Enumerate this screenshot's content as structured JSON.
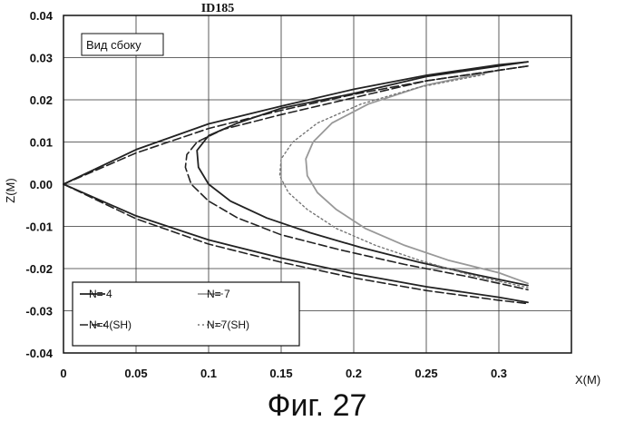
{
  "chart_data": {
    "type": "line",
    "title": "ID185",
    "annotation": "Вид сбоку",
    "xlabel": "X(M)",
    "ylabel": "Z(M)",
    "xlim": [
      0,
      0.35
    ],
    "ylim": [
      -0.04,
      0.04
    ],
    "x_ticks": [
      "0",
      "0.05",
      "0.1",
      "0.15",
      "0.2",
      "0.25",
      "0.3"
    ],
    "y_ticks": [
      "0.04",
      "0.03",
      "0.02",
      "0.01",
      "0.00",
      "-0.01",
      "-0.02",
      "-0.03",
      "-0.04"
    ],
    "grid": true,
    "legend_position": "bottom-left",
    "series": [
      {
        "name": "N= 4",
        "style": "solid",
        "color": "#222222",
        "points": [
          [
            0.32,
            0.029
          ],
          [
            0.25,
            0.0255
          ],
          [
            0.2,
            0.0215
          ],
          [
            0.15,
            0.018
          ],
          [
            0.12,
            0.0145
          ],
          [
            0.1,
            0.0115
          ],
          [
            0.092,
            0.008
          ],
          [
            0.093,
            0.004
          ],
          [
            0.1,
            0.0
          ],
          [
            0.115,
            -0.004
          ],
          [
            0.14,
            -0.008
          ],
          [
            0.17,
            -0.0115
          ],
          [
            0.205,
            -0.015
          ],
          [
            0.245,
            -0.0185
          ],
          [
            0.285,
            -0.0215
          ],
          [
            0.32,
            -0.024
          ]
        ]
      },
      {
        "name": "N= 7",
        "style": "solid",
        "color": "#999999",
        "points": [
          [
            0.3,
            0.027
          ],
          [
            0.25,
            0.0235
          ],
          [
            0.21,
            0.019
          ],
          [
            0.185,
            0.0145
          ],
          [
            0.172,
            0.01
          ],
          [
            0.167,
            0.006
          ],
          [
            0.168,
            0.002
          ],
          [
            0.175,
            -0.002
          ],
          [
            0.188,
            -0.006
          ],
          [
            0.208,
            -0.0105
          ],
          [
            0.235,
            -0.0145
          ],
          [
            0.265,
            -0.018
          ],
          [
            0.3,
            -0.021
          ],
          [
            0.32,
            -0.0235
          ]
        ]
      },
      {
        "name": "N=4(SH)",
        "style": "dashed",
        "color": "#222222",
        "points": [
          [
            0.32,
            0.028
          ],
          [
            0.25,
            0.0245
          ],
          [
            0.2,
            0.0205
          ],
          [
            0.15,
            0.0165
          ],
          [
            0.11,
            0.013
          ],
          [
            0.092,
            0.01
          ],
          [
            0.085,
            0.007
          ],
          [
            0.084,
            0.004
          ],
          [
            0.088,
            0.0
          ],
          [
            0.1,
            -0.004
          ],
          [
            0.12,
            -0.008
          ],
          [
            0.15,
            -0.012
          ],
          [
            0.19,
            -0.0155
          ],
          [
            0.235,
            -0.019
          ],
          [
            0.28,
            -0.022
          ],
          [
            0.32,
            -0.025
          ]
        ]
      },
      {
        "name": "N=7(SH)",
        "style": "dotted",
        "color": "#777777",
        "points": [
          [
            0.29,
            0.026
          ],
          [
            0.245,
            0.023
          ],
          [
            0.205,
            0.019
          ],
          [
            0.175,
            0.0145
          ],
          [
            0.158,
            0.01
          ],
          [
            0.15,
            0.006
          ],
          [
            0.149,
            0.002
          ],
          [
            0.155,
            -0.002
          ],
          [
            0.168,
            -0.006
          ],
          [
            0.188,
            -0.0105
          ],
          [
            0.215,
            -0.0145
          ],
          [
            0.245,
            -0.018
          ],
          [
            0.28,
            -0.0215
          ],
          [
            0.32,
            -0.0245
          ]
        ]
      },
      {
        "name": "",
        "style": "solid",
        "color": "#222222",
        "points": [
          [
            0,
            0.0
          ],
          [
            0.05,
            0.0082
          ],
          [
            0.1,
            0.0143
          ],
          [
            0.15,
            0.0185
          ],
          [
            0.2,
            0.0225
          ],
          [
            0.25,
            0.0258
          ],
          [
            0.3,
            0.0283
          ],
          [
            0.32,
            0.029
          ]
        ]
      },
      {
        "name": "",
        "style": "dashed",
        "color": "#222222",
        "points": [
          [
            0,
            0.0
          ],
          [
            0.05,
            0.0074
          ],
          [
            0.1,
            0.0132
          ],
          [
            0.15,
            0.0175
          ],
          [
            0.2,
            0.0213
          ],
          [
            0.25,
            0.0245
          ],
          [
            0.3,
            0.027
          ],
          [
            0.32,
            0.028
          ]
        ]
      },
      {
        "name": "",
        "style": "solid",
        "color": "#222222",
        "points": [
          [
            0,
            0.0
          ],
          [
            0.05,
            -0.0075
          ],
          [
            0.1,
            -0.0132
          ],
          [
            0.15,
            -0.0175
          ],
          [
            0.2,
            -0.0212
          ],
          [
            0.25,
            -0.0243
          ],
          [
            0.3,
            -0.0268
          ],
          [
            0.32,
            -0.028
          ]
        ]
      },
      {
        "name": "",
        "style": "dashed",
        "color": "#222222",
        "points": [
          [
            0,
            0.0
          ],
          [
            0.05,
            -0.0082
          ],
          [
            0.1,
            -0.0142
          ],
          [
            0.15,
            -0.0185
          ],
          [
            0.2,
            -0.0222
          ],
          [
            0.25,
            -0.0252
          ],
          [
            0.3,
            -0.0275
          ],
          [
            0.32,
            -0.0283
          ]
        ]
      }
    ]
  },
  "figure_caption": "Фиг. 27"
}
